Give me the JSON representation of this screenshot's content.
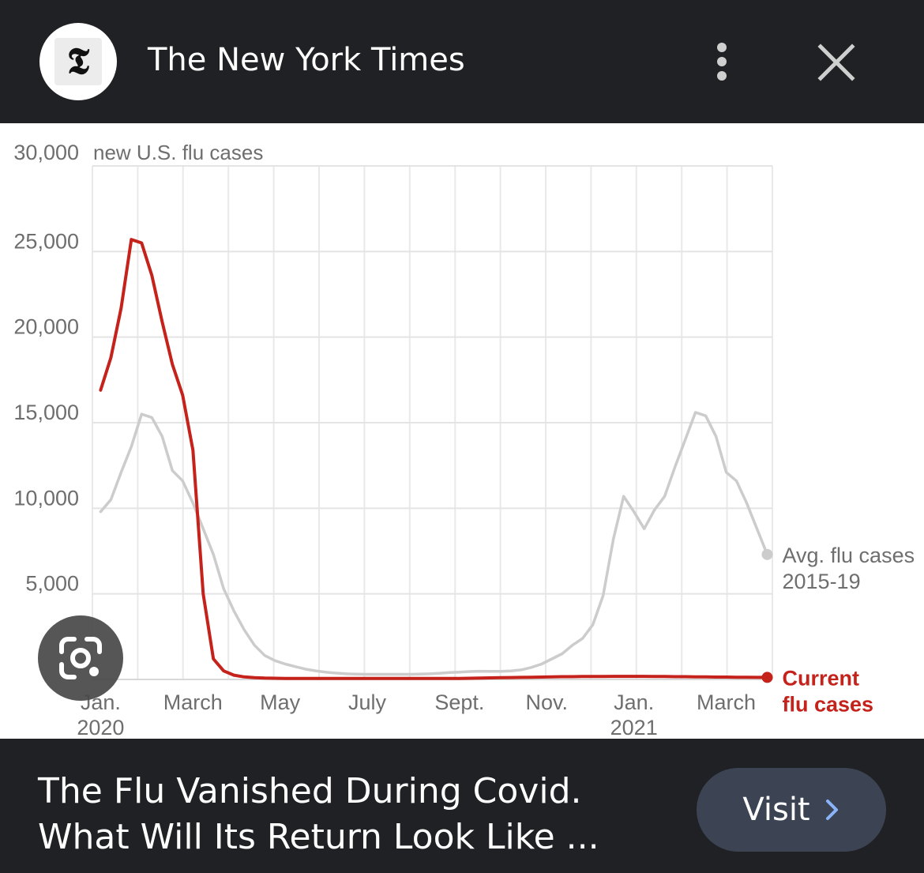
{
  "header": {
    "logo_glyph": "𝕿",
    "site_name": "The New York Times",
    "menu_icon": "more-vert-icon",
    "close_icon": "close-icon"
  },
  "chart_data": {
    "type": "line",
    "title": "",
    "ylabel": "new U.S. flu cases",
    "ylim": [
      0,
      30000
    ],
    "y_ticks": [
      "30,000",
      "25,000",
      "20,000",
      "15,000",
      "10,000",
      "5,000"
    ],
    "y_tick_values": [
      30000,
      25000,
      20000,
      15000,
      10000,
      5000
    ],
    "x_ticks": [
      {
        "label": "Jan.",
        "sub": "2020",
        "week": 0
      },
      {
        "label": "March",
        "sub": "",
        "week": 9
      },
      {
        "label": "May",
        "sub": "",
        "week": 17.5
      },
      {
        "label": "July",
        "sub": "",
        "week": 26
      },
      {
        "label": "Sept.",
        "sub": "",
        "week": 35
      },
      {
        "label": "Nov.",
        "sub": "",
        "week": 43.5
      },
      {
        "label": "Jan.",
        "sub": "2021",
        "week": 52
      },
      {
        "label": "March",
        "sub": "",
        "week": 61
      }
    ],
    "grid": true,
    "x_range": [
      -0.8,
      65.5
    ],
    "series": [
      {
        "name": "Avg. flu cases 2015-19",
        "label_lines": [
          "Avg. flu cases",
          "2015-19"
        ],
        "color": "#cccccc",
        "points": [
          [
            0,
            9800
          ],
          [
            1,
            10500
          ],
          [
            2,
            12100
          ],
          [
            3,
            13600
          ],
          [
            4,
            15500
          ],
          [
            5,
            15300
          ],
          [
            6,
            14200
          ],
          [
            7,
            12200
          ],
          [
            8,
            11600
          ],
          [
            9,
            10300
          ],
          [
            10,
            8800
          ],
          [
            11,
            7300
          ],
          [
            12,
            5300
          ],
          [
            13,
            4000
          ],
          [
            14,
            2900
          ],
          [
            15,
            2000
          ],
          [
            16,
            1400
          ],
          [
            17,
            1100
          ],
          [
            18,
            900
          ],
          [
            19,
            750
          ],
          [
            20,
            600
          ],
          [
            21,
            500
          ],
          [
            22,
            420
          ],
          [
            23,
            370
          ],
          [
            24,
            330
          ],
          [
            25,
            310
          ],
          [
            26,
            300
          ],
          [
            27,
            300
          ],
          [
            28,
            300
          ],
          [
            29,
            300
          ],
          [
            30,
            300
          ],
          [
            31,
            310
          ],
          [
            32,
            330
          ],
          [
            33,
            360
          ],
          [
            34,
            400
          ],
          [
            35,
            430
          ],
          [
            36,
            460
          ],
          [
            37,
            480
          ],
          [
            38,
            470
          ],
          [
            39,
            470
          ],
          [
            40,
            500
          ],
          [
            41,
            560
          ],
          [
            42,
            700
          ],
          [
            43,
            900
          ],
          [
            44,
            1200
          ],
          [
            45,
            1500
          ],
          [
            46,
            2000
          ],
          [
            47,
            2400
          ],
          [
            48,
            3200
          ],
          [
            49,
            4900
          ],
          [
            50,
            8200
          ],
          [
            51,
            10700
          ],
          [
            52,
            9800
          ],
          [
            53,
            8800
          ],
          [
            54,
            9900
          ],
          [
            55,
            10700
          ],
          [
            56,
            12400
          ],
          [
            57,
            14000
          ],
          [
            58,
            15600
          ],
          [
            59,
            15400
          ],
          [
            60,
            14200
          ],
          [
            61,
            12100
          ],
          [
            62,
            11600
          ],
          [
            63,
            10300
          ],
          [
            64,
            8800
          ],
          [
            65,
            7300
          ]
        ]
      },
      {
        "name": "Current flu cases",
        "label_lines": [
          "Current",
          "flu cases"
        ],
        "color": "#c4221b",
        "points": [
          [
            0,
            16900
          ],
          [
            1,
            18800
          ],
          [
            2,
            21700
          ],
          [
            3,
            25700
          ],
          [
            4,
            25500
          ],
          [
            5,
            23600
          ],
          [
            6,
            20900
          ],
          [
            7,
            18400
          ],
          [
            8,
            16600
          ],
          [
            9,
            13400
          ],
          [
            10,
            5000
          ],
          [
            11,
            1200
          ],
          [
            12,
            500
          ],
          [
            13,
            250
          ],
          [
            14,
            150
          ],
          [
            15,
            100
          ],
          [
            16,
            80
          ],
          [
            17,
            70
          ],
          [
            18,
            60
          ],
          [
            19,
            60
          ],
          [
            20,
            60
          ],
          [
            21,
            60
          ],
          [
            22,
            60
          ],
          [
            23,
            60
          ],
          [
            24,
            60
          ],
          [
            25,
            60
          ],
          [
            26,
            60
          ],
          [
            27,
            60
          ],
          [
            28,
            60
          ],
          [
            29,
            60
          ],
          [
            30,
            60
          ],
          [
            31,
            60
          ],
          [
            32,
            60
          ],
          [
            33,
            60
          ],
          [
            34,
            60
          ],
          [
            35,
            60
          ],
          [
            36,
            70
          ],
          [
            37,
            80
          ],
          [
            38,
            90
          ],
          [
            39,
            100
          ],
          [
            40,
            110
          ],
          [
            41,
            120
          ],
          [
            42,
            130
          ],
          [
            43,
            140
          ],
          [
            44,
            150
          ],
          [
            45,
            160
          ],
          [
            46,
            160
          ],
          [
            47,
            170
          ],
          [
            48,
            170
          ],
          [
            49,
            170
          ],
          [
            50,
            180
          ],
          [
            51,
            180
          ],
          [
            52,
            180
          ],
          [
            53,
            180
          ],
          [
            54,
            170
          ],
          [
            55,
            170
          ],
          [
            56,
            160
          ],
          [
            57,
            160
          ],
          [
            58,
            150
          ],
          [
            59,
            150
          ],
          [
            60,
            140
          ],
          [
            61,
            140
          ],
          [
            62,
            130
          ],
          [
            63,
            130
          ],
          [
            64,
            120
          ],
          [
            65,
            120
          ]
        ]
      }
    ]
  },
  "lens_button": {
    "icon": "google-lens-icon"
  },
  "footer": {
    "headline": "The Flu Vanished During Covid. What Will Its Return Look Like ...",
    "visit_label": "Visit",
    "visit_icon": "chevron-right-icon"
  }
}
